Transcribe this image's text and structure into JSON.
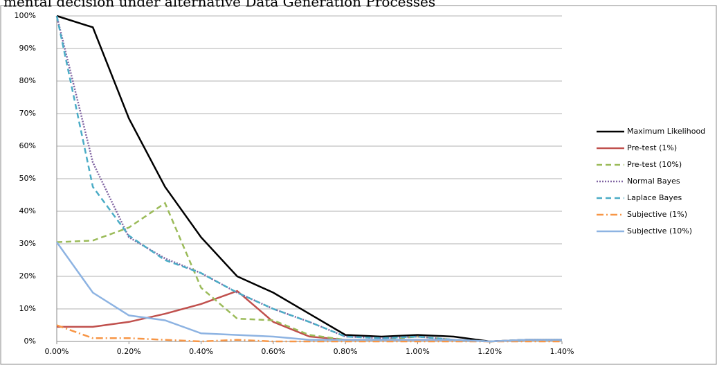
{
  "chart_data": {
    "type": "line",
    "title": "mental decision under alternative Data Generation Processes",
    "x": [
      0,
      0.1,
      0.2,
      0.3,
      0.4,
      0.5,
      0.6,
      0.7,
      0.8,
      0.9,
      1.0,
      1.1,
      1.2,
      1.3,
      1.4
    ],
    "series": [
      {
        "name": "Maximum Likelihood",
        "color": "#000000",
        "dash": "solid",
        "values": [
          100,
          96.5,
          68.5,
          47.5,
          32,
          20,
          15,
          8.5,
          2,
          1.5,
          2,
          1.5,
          0,
          0.5,
          0.5
        ]
      },
      {
        "name": "Pre-test (1%)",
        "color": "#c0504d",
        "dash": "solid",
        "values": [
          4.5,
          4.5,
          6,
          8.5,
          11.5,
          15.5,
          6,
          1.5,
          0.5,
          0.5,
          0.5,
          0.5,
          0,
          0.5,
          0.5
        ]
      },
      {
        "name": "Pre-test (10%)",
        "color": "#9bbb59",
        "dash": "dashed",
        "values": [
          30.5,
          31,
          35,
          42.5,
          16.5,
          7,
          6.5,
          2,
          0.5,
          0.5,
          1.5,
          0.5,
          0,
          0.5,
          0.5
        ]
      },
      {
        "name": "Normal Bayes",
        "color": "#8064a2",
        "dash": "dotted",
        "values": [
          100,
          55,
          32,
          25.5,
          21,
          15,
          10,
          6,
          1.5,
          1,
          1.5,
          0.5,
          0,
          0.5,
          0.5
        ]
      },
      {
        "name": "Laplace Bayes",
        "color": "#4bacc6",
        "dash": "dashed",
        "values": [
          100,
          47.5,
          32.5,
          25,
          21,
          15,
          10,
          6,
          1.5,
          1,
          1.5,
          0.5,
          0,
          0.5,
          0.5
        ]
      },
      {
        "name": "Subjective (1%)",
        "color": "#f79646",
        "dash": "dashdot",
        "values": [
          5,
          1,
          1,
          0.5,
          0,
          0.5,
          0,
          0,
          0,
          0,
          0,
          0,
          0,
          0,
          0
        ]
      },
      {
        "name": "Subjective (10%)",
        "color": "#8db3e2",
        "dash": "solid",
        "values": [
          30.5,
          15,
          8,
          6.5,
          2.5,
          2,
          1.5,
          0.5,
          0.5,
          0.5,
          0.5,
          0.5,
          0,
          0.5,
          0.5
        ]
      }
    ],
    "xlim": [
      0,
      1.4
    ],
    "xticks": [
      {
        "value": 0,
        "label": "0.00%"
      },
      {
        "value": 0.2,
        "label": "0.20%"
      },
      {
        "value": 0.4,
        "label": "0.40%"
      },
      {
        "value": 0.6,
        "label": "0.60%"
      },
      {
        "value": 0.8,
        "label": "0.80%"
      },
      {
        "value": 1.0,
        "label": "1.00%"
      },
      {
        "value": 1.2,
        "label": "1.20%"
      },
      {
        "value": 1.4,
        "label": "1.40%"
      }
    ],
    "ylim": [
      0,
      100
    ],
    "yticks": [
      {
        "value": 0,
        "label": "0%"
      },
      {
        "value": 10,
        "label": "10%"
      },
      {
        "value": 20,
        "label": "20%"
      },
      {
        "value": 30,
        "label": "30%"
      },
      {
        "value": 40,
        "label": "40%"
      },
      {
        "value": 50,
        "label": "50%"
      },
      {
        "value": 60,
        "label": "60%"
      },
      {
        "value": 70,
        "label": "70%"
      },
      {
        "value": 80,
        "label": "80%"
      },
      {
        "value": 90,
        "label": "90%"
      },
      {
        "value": 100,
        "label": "100%"
      }
    ],
    "grid": true,
    "legend": "right"
  }
}
